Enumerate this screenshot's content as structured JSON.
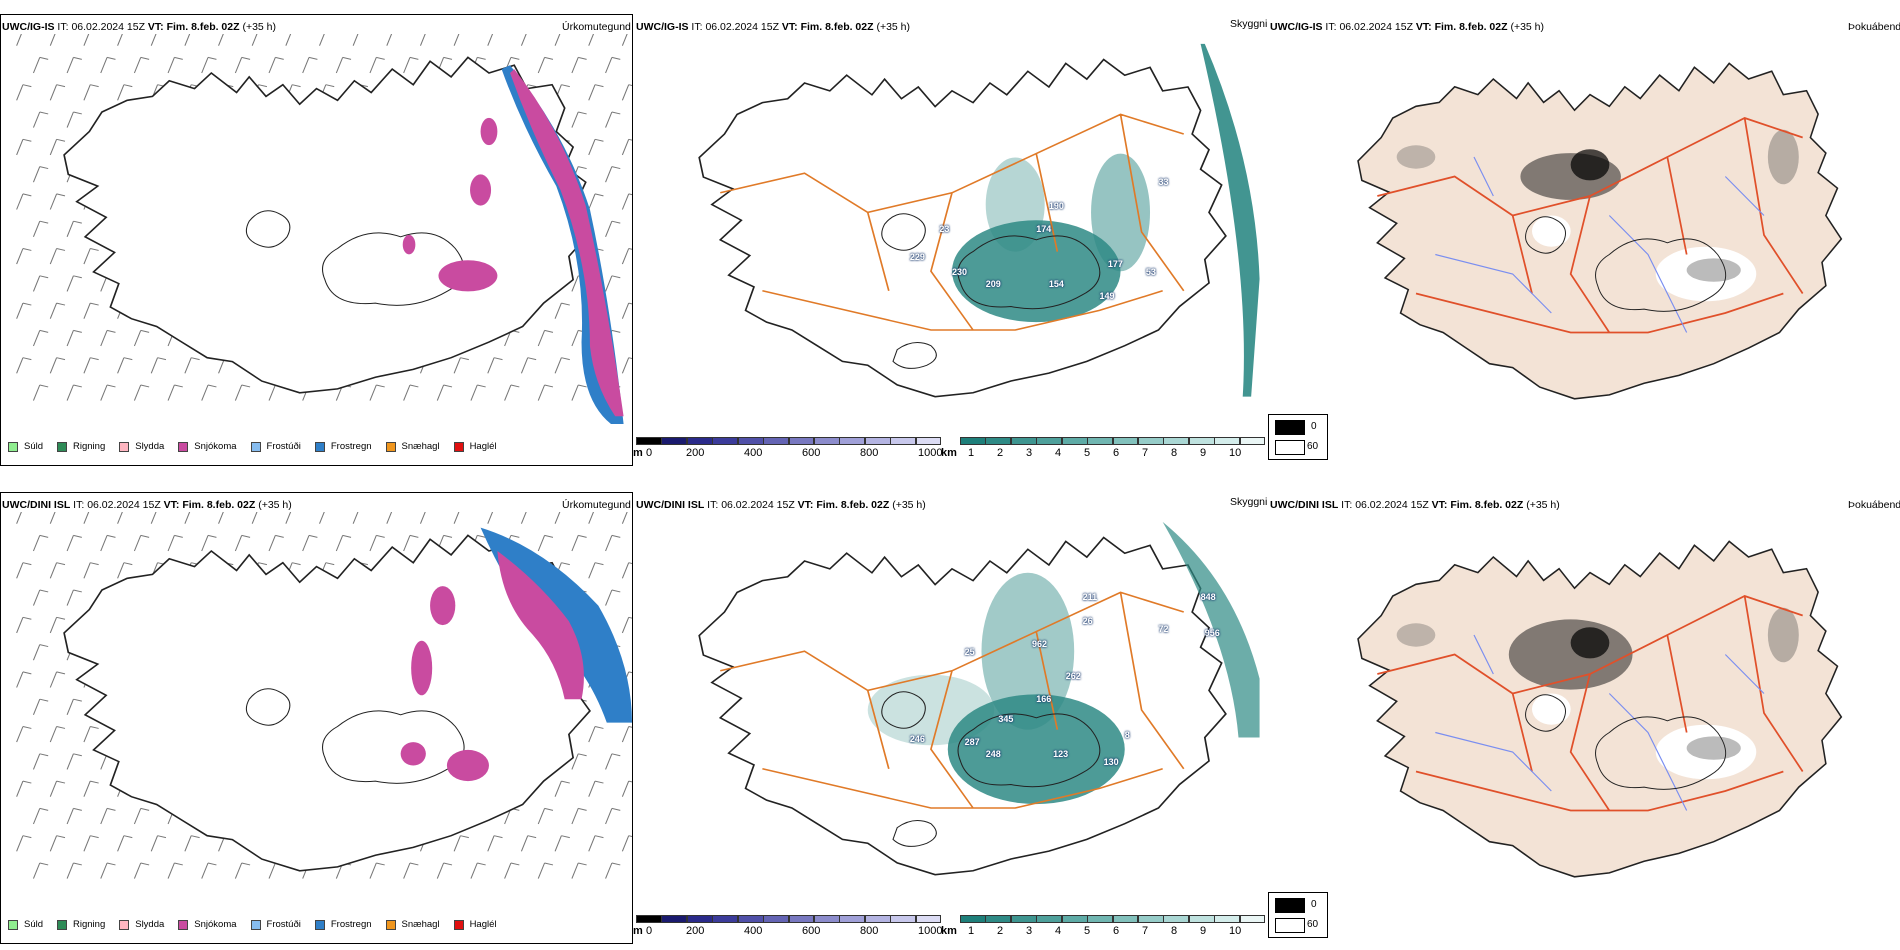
{
  "rows": [
    {
      "model": "UWC/IG-IS",
      "it_label": "IT:",
      "it_value": "06.02.2024 15Z",
      "vt_label": "VT:",
      "vt_value": "Fim. 8.feb. 02Z",
      "lead": "(+35 h)",
      "precip_title": "Úrkomutegund",
      "cloud_title": "Skyggni",
      "fog_title": "Þokuábendi",
      "cloud_numbers": [
        "190",
        "174",
        "229",
        "230",
        "209",
        "154",
        "149",
        "177",
        "53",
        "33",
        "23"
      ]
    },
    {
      "model": "UWC/DINI ISL",
      "it_label": "IT:",
      "it_value": "06.02.2024 15Z",
      "vt_label": "VT:",
      "vt_value": "Fim. 8.feb. 02Z",
      "lead": "(+35 h)",
      "precip_title": "Úrkomutegund",
      "cloud_title": "Skyggni",
      "fog_title": "Þokuábendi",
      "cloud_numbers": [
        "211",
        "26",
        "962",
        "262",
        "166",
        "345",
        "287",
        "248",
        "123",
        "130",
        "246",
        "848",
        "956",
        "72",
        "25",
        "8"
      ]
    }
  ],
  "precip_legend": [
    {
      "label": "Súld",
      "color": "#90ee90"
    },
    {
      "label": "Rigning",
      "color": "#2e8b57"
    },
    {
      "label": "Slydda",
      "color": "#ffb6c1"
    },
    {
      "label": "Snjókoma",
      "color": "#c94ba0"
    },
    {
      "label": "Frostúði",
      "color": "#87bdf0"
    },
    {
      "label": "Frostregn",
      "color": "#2f7fc8"
    },
    {
      "label": "Snæhagl",
      "color": "#f0961e"
    },
    {
      "label": "Haglél",
      "color": "#e01010"
    }
  ],
  "cloudbase_scale": {
    "unit": "m",
    "labels": [
      "0",
      "200",
      "400",
      "600",
      "800",
      "1000"
    ],
    "colors": [
      "#000000",
      "#1a1a6e",
      "#2a2a8a",
      "#3b3b9a",
      "#5050a8",
      "#6464b4",
      "#7878c0",
      "#8c8ccc",
      "#a0a0d8",
      "#b4b4e2",
      "#c8c8ec",
      "#dcdcf4"
    ]
  },
  "visibility_scale": {
    "unit": "km",
    "labels": [
      "1",
      "2",
      "3",
      "4",
      "5",
      "6",
      "7",
      "8",
      "9",
      "10"
    ],
    "colors": [
      "#1e7f7a",
      "#2e8a85",
      "#3e9590",
      "#4ea09b",
      "#5eaba6",
      "#70b6b1",
      "#82c1bc",
      "#96ccc8",
      "#aad7d4",
      "#bfe2df",
      "#d4edeb",
      "#eaf6f5"
    ]
  },
  "fog_legend": [
    {
      "label": "0",
      "color": "#000000"
    },
    {
      "label": "60",
      "color": "#ffffff"
    }
  ],
  "colors": {
    "snow": "#c94ba0",
    "freezing_rain": "#2f7fc8",
    "land_fog": "#f3e3d6",
    "roads": "#e07a28",
    "roads_red": "#e0502a",
    "rivers": "#7a8ef0",
    "visibility": "#2e8a85"
  }
}
